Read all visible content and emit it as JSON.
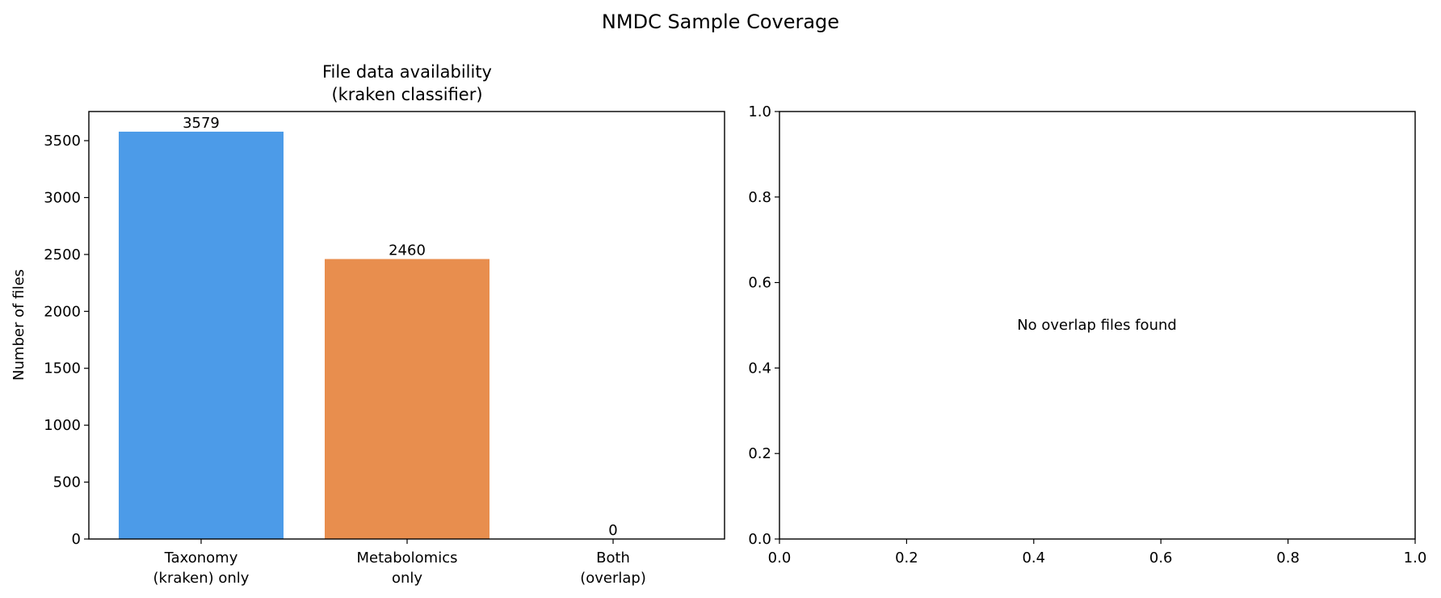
{
  "suptitle": "NMDC Sample Coverage",
  "chart_data": [
    {
      "type": "bar",
      "title": [
        "File data availability",
        "(kraken classifier)"
      ],
      "categories": [
        [
          "Taxonomy",
          "(kraken) only"
        ],
        [
          "Metabolomics",
          "only"
        ],
        [
          "Both",
          "(overlap)"
        ]
      ],
      "values": [
        3579,
        2460,
        0
      ],
      "data_labels": [
        "3579",
        "2460",
        "0"
      ],
      "colors": [
        "#4C9BE8",
        "#E88E4E",
        "#5CB85C"
      ],
      "xlabel": "",
      "ylabel": "Number of files",
      "ylim": [
        0,
        3756
      ],
      "yticks": [
        0,
        500,
        1000,
        1500,
        2000,
        2500,
        3000,
        3500
      ],
      "grid": false
    },
    {
      "type": "scatter",
      "title": "",
      "annotation": "No overlap files found",
      "xlim": [
        0,
        1
      ],
      "ylim": [
        0,
        1
      ],
      "xticks": [
        "0.0",
        "0.2",
        "0.4",
        "0.6",
        "0.8",
        "1.0"
      ],
      "yticks": [
        "0.0",
        "0.2",
        "0.4",
        "0.6",
        "0.8",
        "1.0"
      ],
      "grid": false
    }
  ]
}
